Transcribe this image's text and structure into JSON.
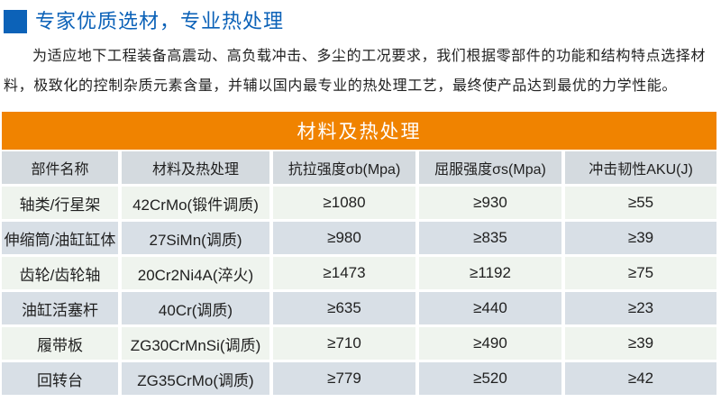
{
  "header": {
    "title": "专家优质选材，专业热处理"
  },
  "intro": {
    "text": "为适应地下工程装备高震动、高负载冲击、多尘的工况要求，我们根据零部件的功能和结构特点选择材料，极致化的控制杂质元素含量，并辅以国内最专业的热处理工艺，最终使产品达到最优的力学性能。"
  },
  "table": {
    "banner": "材料及热处理",
    "columns": [
      "部件名称",
      "材料及热处理",
      "抗拉强度σb(Mpa)",
      "屈服强度σs(Mpa)",
      "冲击韧性AKU(J)"
    ],
    "rows": [
      [
        "轴类/行星架",
        "42CrMo(锻件调质)",
        "≥1080",
        "≥930",
        "≥55"
      ],
      [
        "伸缩筒/油缸缸体",
        "27SiMn(调质)",
        "≥980",
        "≥835",
        "≥39"
      ],
      [
        "齿轮/齿轮轴",
        "20Cr2Ni4A(淬火)",
        "≥1473",
        "≥1192",
        "≥75"
      ],
      [
        "油缸活塞杆",
        "40Cr(调质)",
        "≥635",
        "≥440",
        "≥23"
      ],
      [
        "履带板",
        "ZG30CrMnSi(调质)",
        "≥710",
        "≥490",
        "≥39"
      ],
      [
        "回转台",
        "ZG35CrMo(调质)",
        "≥779",
        "≥520",
        "≥42"
      ]
    ]
  },
  "colors": {
    "accent_blue": "#0c62b8",
    "banner_orange": "#f08300",
    "table_header_bg": "#d4dadf",
    "row_even_bg": "#d8dfe6",
    "row_odd_bg": "#eff4ee"
  }
}
